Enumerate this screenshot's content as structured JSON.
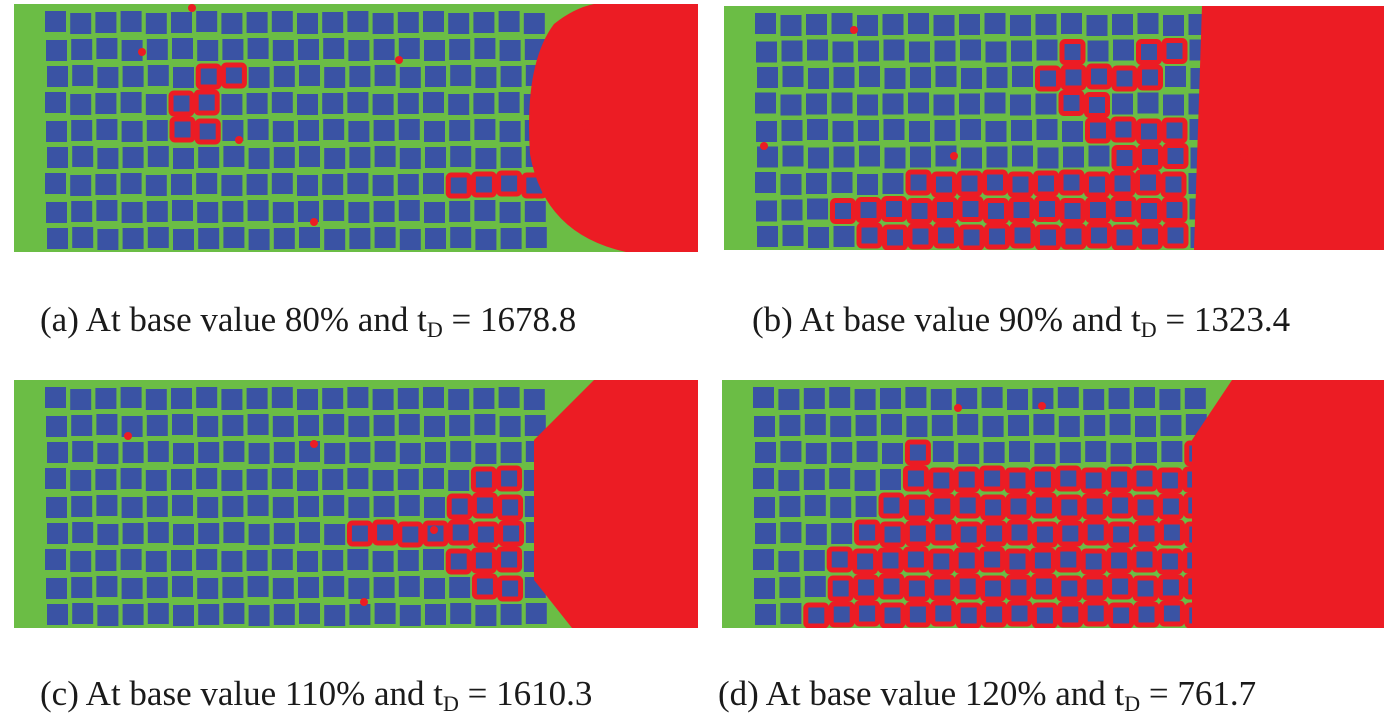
{
  "colors": {
    "matrix": "#6bbd45",
    "grain": "#3a53a4",
    "crack": "#ec1c24"
  },
  "panels": [
    {
      "id": "a",
      "caption": {
        "prefix": "(a) At base value 80% and  t",
        "sub": "D",
        "suffix": " = 1678.8"
      }
    },
    {
      "id": "b",
      "caption": {
        "prefix": "(b) At base value 90% and t",
        "sub": "D",
        "suffix": " = 1323.4"
      }
    },
    {
      "id": "c",
      "caption": {
        "prefix": "(c) At base value 110% and t",
        "sub": "D",
        "suffix": " = 1610.3"
      }
    },
    {
      "id": "d",
      "caption": {
        "prefix": "(d) At base value 120% and t",
        "sub": "D",
        "suffix": " = 761.7"
      }
    }
  ]
}
